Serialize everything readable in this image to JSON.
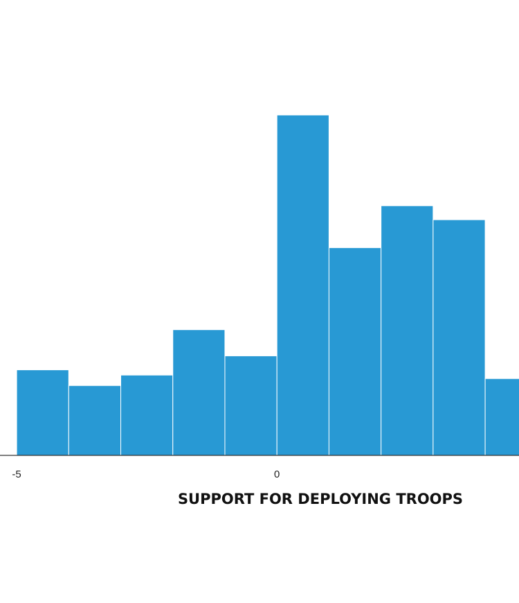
{
  "chart_data": {
    "type": "bar",
    "title": "",
    "xlabel": "SUPPORT FOR DEPLOYING TROOPS",
    "ylabel": "",
    "bar_color": "#2899d4",
    "bin_width": 1,
    "x": [
      -5,
      -4,
      -3,
      -2,
      -1,
      0,
      1,
      2,
      3,
      4
    ],
    "values": [
      4.9,
      4.0,
      4.6,
      7.2,
      5.7,
      19.5,
      11.9,
      14.3,
      13.5,
      4.4
    ],
    "x_ticks": [
      {
        "value": -5,
        "label": "-5"
      },
      {
        "value": 0,
        "label": "0"
      }
    ],
    "xlim": [
      -5.32,
      4.65
    ],
    "ylim": [
      0,
      24.5
    ],
    "grid": false,
    "legend": "none"
  }
}
